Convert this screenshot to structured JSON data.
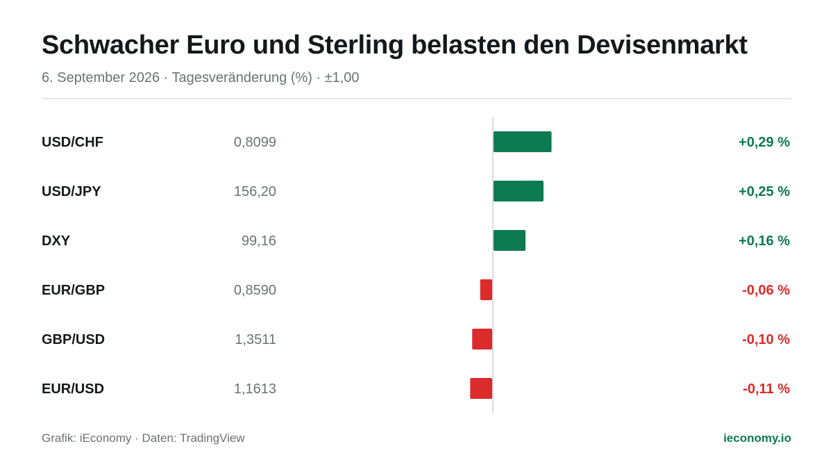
{
  "header": {
    "title": "Schwacher Euro und Sterling belasten den Devisenmarkt",
    "subtitle": "6. September 2026 · Tagesveränderung (%) · ±1,00"
  },
  "footer": {
    "source": "Grafik: iEconomy · Daten: TradingView",
    "brand": "ieconomy.io"
  },
  "colors": {
    "positive": "#0e7a52",
    "negative": "#dc2b2b",
    "axis": "#d9dcde",
    "label": "#14181b",
    "value": "#6b7175"
  },
  "chart_data": {
    "type": "bar",
    "orientation": "horizontal",
    "title": "Schwacher Euro und Sterling belasten den Devisenmarkt",
    "subtitle": "6. September 2026 · Tagesveränderung (%) · ±1,00",
    "xlim": [
      -1.0,
      1.0
    ],
    "grid": false,
    "legend": "none",
    "rows": [
      {
        "name": "USD/CHF",
        "rate": "0,8099",
        "change": 0.29,
        "change_label": "+0,29 %"
      },
      {
        "name": "USD/JPY",
        "rate": "156,20",
        "change": 0.25,
        "change_label": "+0,25 %"
      },
      {
        "name": "DXY",
        "rate": "99,16",
        "change": 0.16,
        "change_label": "+0,16 %"
      },
      {
        "name": "EUR/GBP",
        "rate": "0,8590",
        "change": -0.06,
        "change_label": "-0,06 %"
      },
      {
        "name": "GBP/USD",
        "rate": "1,3511",
        "change": -0.1,
        "change_label": "-0,10 %"
      },
      {
        "name": "EUR/USD",
        "rate": "1,1613",
        "change": -0.11,
        "change_label": "-0,11 %"
      }
    ]
  }
}
